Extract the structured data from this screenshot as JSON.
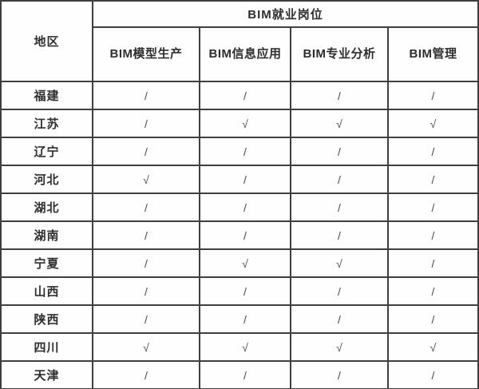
{
  "table": {
    "region_header": "地区",
    "group_header": "BIM就业岗位",
    "columns": [
      "BIM模型生产",
      "BIM信息应用",
      "BIM专业分析",
      "BIM管理"
    ],
    "marks": {
      "available": "√",
      "not_available": "/"
    },
    "rows": [
      {
        "region": "福建",
        "values": [
          "/",
          "/",
          "/",
          "/"
        ]
      },
      {
        "region": "江苏",
        "values": [
          "/",
          "√",
          "√",
          "√"
        ]
      },
      {
        "region": "辽宁",
        "values": [
          "/",
          "/",
          "/",
          "/"
        ]
      },
      {
        "region": "河北",
        "values": [
          "√",
          "/",
          "/",
          "/"
        ]
      },
      {
        "region": "湖北",
        "values": [
          "/",
          "/",
          "/",
          "/"
        ]
      },
      {
        "region": "湖南",
        "values": [
          "/",
          "/",
          "/",
          "/"
        ]
      },
      {
        "region": "宁夏",
        "values": [
          "/",
          "√",
          "√",
          "/"
        ]
      },
      {
        "region": "山西",
        "values": [
          "/",
          "/",
          "/",
          "/"
        ]
      },
      {
        "region": "陕西",
        "values": [
          "/",
          "/",
          "/",
          "/"
        ]
      },
      {
        "region": "四川",
        "values": [
          "√",
          "√",
          "√",
          "√"
        ]
      },
      {
        "region": "天津",
        "values": [
          "/",
          "/",
          "/",
          "/"
        ]
      }
    ],
    "colors": {
      "border": "#3f3f3f",
      "text": "#2e2e2e",
      "background": "#fefefe"
    }
  }
}
